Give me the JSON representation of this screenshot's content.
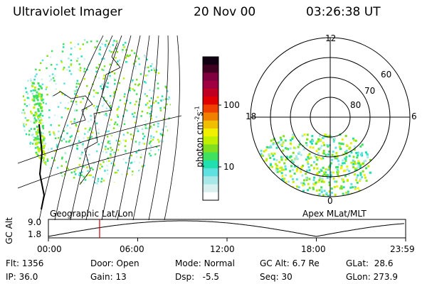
{
  "header": {
    "title": "Ultraviolet Imager",
    "date": "20 Nov 00",
    "time": "03:26:38 UT"
  },
  "colorbar": {
    "label": "photon cm",
    "label_sup1": "-2",
    "label_mid": "s",
    "label_sup2": "-1",
    "ticks": [
      {
        "label": "100",
        "value": 100
      },
      {
        "label": "10",
        "value": 10
      }
    ],
    "colors": [
      "#ffffff",
      "#d8f0f0",
      "#a8e8e8",
      "#60e0e0",
      "#20e0b0",
      "#40e060",
      "#80e020",
      "#c0f000",
      "#f0f000",
      "#f0c000",
      "#f08000",
      "#f04000",
      "#e00000",
      "#c00020",
      "#a00040",
      "#800040",
      "#400020",
      "#100010"
    ]
  },
  "geo_map": {
    "label": "Geographic Lat/Lon"
  },
  "polar_map": {
    "label": "Apex MLat/MLT",
    "mlt_labels": [
      "12",
      "18",
      "6",
      "0"
    ],
    "lat_labels": [
      "60",
      "70",
      "80"
    ]
  },
  "altitude_plot": {
    "ylabel": "GC Alt",
    "yticks": [
      "9.0",
      "1.8"
    ],
    "xticks": [
      "00:00",
      "06:00",
      "12:00",
      "18:00",
      "23:59"
    ],
    "current_time_hours": 3.44
  },
  "status": {
    "flt_label": "Flt:",
    "flt_value": "1356",
    "ip_label": "IP:",
    "ip_value": "36.0",
    "door_label": "Door:",
    "door_value": "Open",
    "gain_label": "Gain:",
    "gain_value": "13",
    "mode_label": "Mode:",
    "mode_value": "Normal",
    "dsp_label": "Dsp:",
    "dsp_value": "-5.5",
    "gcalt_label": "GC Alt:",
    "gcalt_value": "6.7 Re",
    "seq_label": "Seq:",
    "seq_value": "30",
    "glat_label": "GLat:",
    "glat_value": "28.6",
    "glon_label": "GLon:",
    "glon_value": "273.9"
  }
}
